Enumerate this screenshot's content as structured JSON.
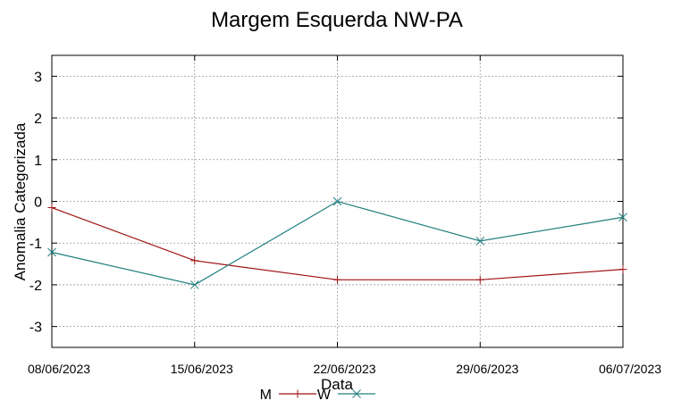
{
  "chart_data": {
    "type": "line",
    "title": "Margem Esquerda NW-PA",
    "xlabel": "Data",
    "ylabel": "Anomalia Categorizada",
    "ylim": [
      -3.5,
      3.5
    ],
    "yticks": [
      3,
      2,
      1,
      0,
      -1,
      -2,
      -3
    ],
    "ytick_labels": [
      "3",
      "2",
      "1",
      "0",
      "-1",
      "-2",
      "-3"
    ],
    "categories": [
      "08/06/2023",
      "15/06/2023",
      "22/06/2023",
      "29/06/2023",
      "06/07/2023"
    ],
    "grid": true,
    "legend_position": "bottom-center",
    "series": [
      {
        "name": "M",
        "color": "#a01212",
        "marker": "plus",
        "values": [
          -0.15,
          -1.42,
          -1.88,
          -1.88,
          -1.63
        ]
      },
      {
        "name": "W",
        "color": "#207f7f",
        "marker": "cross",
        "values": [
          -1.22,
          -2.0,
          0.0,
          -0.95,
          -0.38
        ]
      }
    ]
  }
}
